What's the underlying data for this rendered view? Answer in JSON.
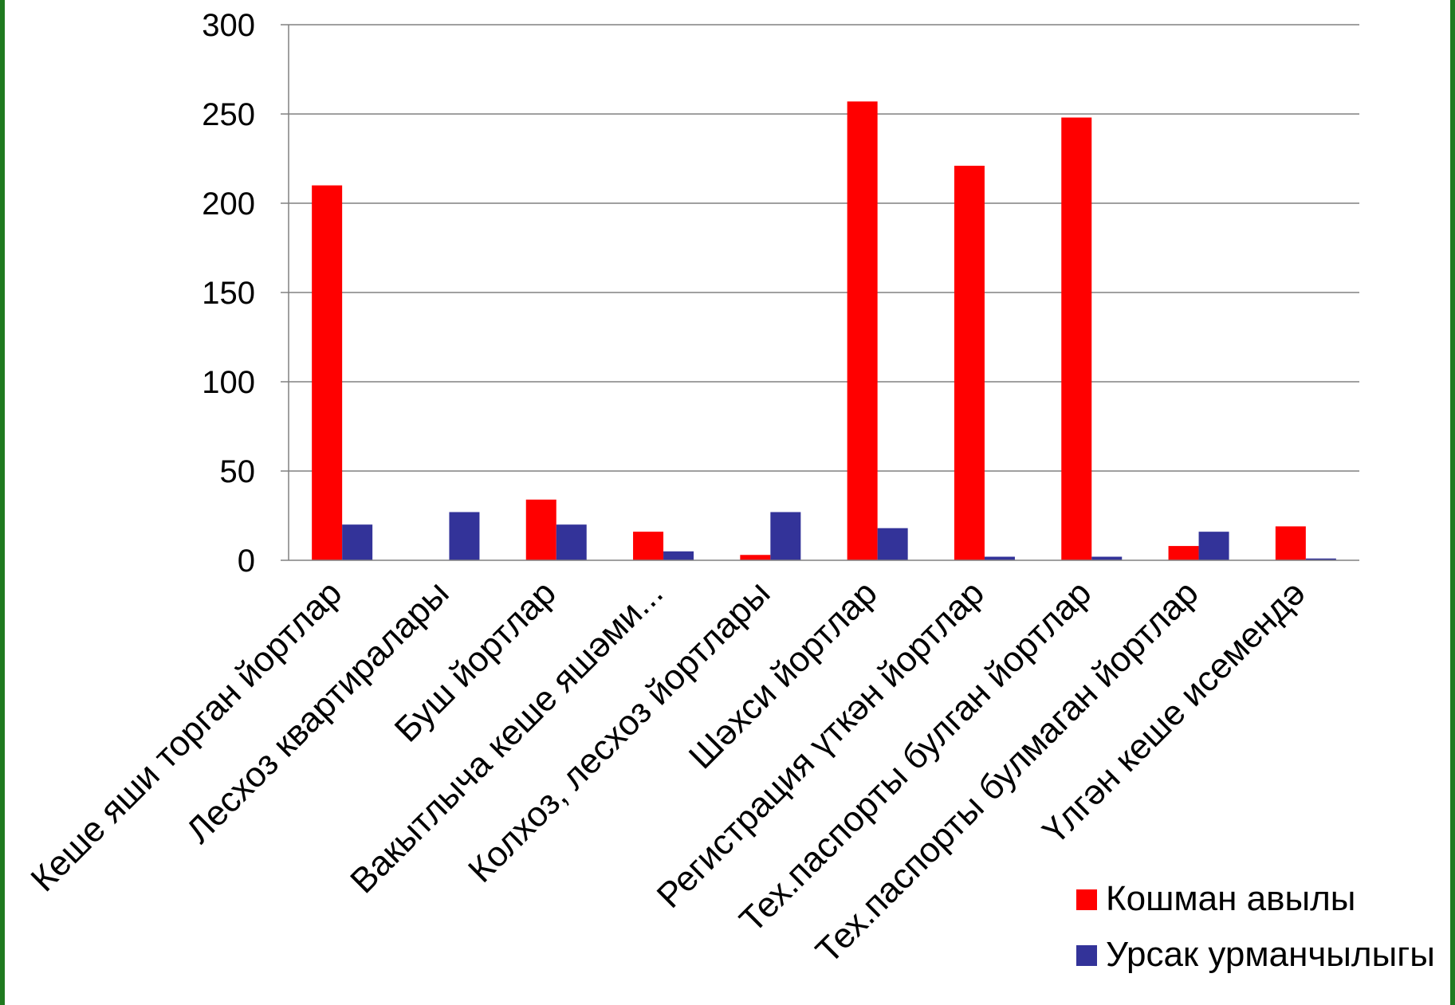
{
  "colors": {
    "frame": "#1f7a1f",
    "series_1": "#ff0000",
    "series_2": "#333399",
    "grid": "#808080"
  },
  "chart_data": {
    "type": "bar",
    "categories": [
      "Кеше яши торган йортлар",
      "Лесхоз квартиралары",
      "Буш йортлар",
      "Вакытлыча кеше яшәми...",
      "Колхоз, лесхоз йортлары",
      "Шәхси йортлар",
      "Регистрация үткән йортлар",
      "Тех.паспорты булган йортлар",
      "Тех.паспорты булмаган  йортлар",
      "Үлгән кеше исемендә"
    ],
    "series": [
      {
        "name": "Кошман авылы",
        "color": "#ff0000",
        "values": [
          210,
          0,
          34,
          16,
          3,
          257,
          221,
          248,
          8,
          19
        ]
      },
      {
        "name": "Урсак урманчылыгы",
        "color": "#333399",
        "values": [
          20,
          27,
          20,
          5,
          27,
          18,
          2,
          2,
          16,
          1
        ]
      }
    ],
    "ylim": [
      0,
      300
    ],
    "yticks": [
      0,
      50,
      100,
      150,
      200,
      250,
      300
    ],
    "grid": true,
    "legend": "bottom-right",
    "title": "",
    "xlabel": "",
    "ylabel": ""
  }
}
